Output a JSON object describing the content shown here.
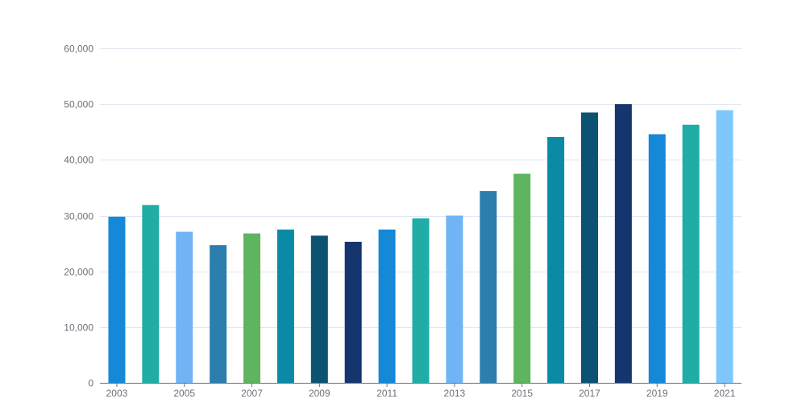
{
  "chart_data": {
    "type": "bar",
    "categories": [
      "2003",
      "2004",
      "2005",
      "2006",
      "2007",
      "2008",
      "2009",
      "2010",
      "2011",
      "2012",
      "2013",
      "2014",
      "2015",
      "2016",
      "2017",
      "2018",
      "2019",
      "2020",
      "2021"
    ],
    "x_tick_labels": [
      "2003",
      "2005",
      "2007",
      "2009",
      "2011",
      "2013",
      "2015",
      "2017",
      "2019",
      "2021"
    ],
    "values": [
      29800,
      31900,
      27100,
      24700,
      26800,
      27500,
      26400,
      25300,
      27500,
      29500,
      30000,
      34400,
      37500,
      44100,
      48500,
      50000,
      44600,
      46300,
      48900
    ],
    "colors": [
      "#1589d8",
      "#20ada5",
      "#71b4f5",
      "#2b7ead",
      "#5fb45f",
      "#0b8aa5",
      "#0c5273",
      "#15356e",
      "#1589d8",
      "#20ada5",
      "#71b4f5",
      "#2b7ead",
      "#5fb45f",
      "#0b8aa5",
      "#0c5273",
      "#15356e",
      "#1589d8",
      "#20ada5",
      "#7ec7fb"
    ],
    "y_ticks": [
      0,
      10000,
      20000,
      30000,
      40000,
      50000,
      60000
    ],
    "y_tick_labels": [
      "0",
      "10,000",
      "20,000",
      "30,000",
      "40,000",
      "50,000",
      "60,000"
    ],
    "ylim": [
      0,
      60000
    ],
    "grid": true,
    "legend": "none",
    "title": "",
    "xlabel": "",
    "ylabel": ""
  }
}
